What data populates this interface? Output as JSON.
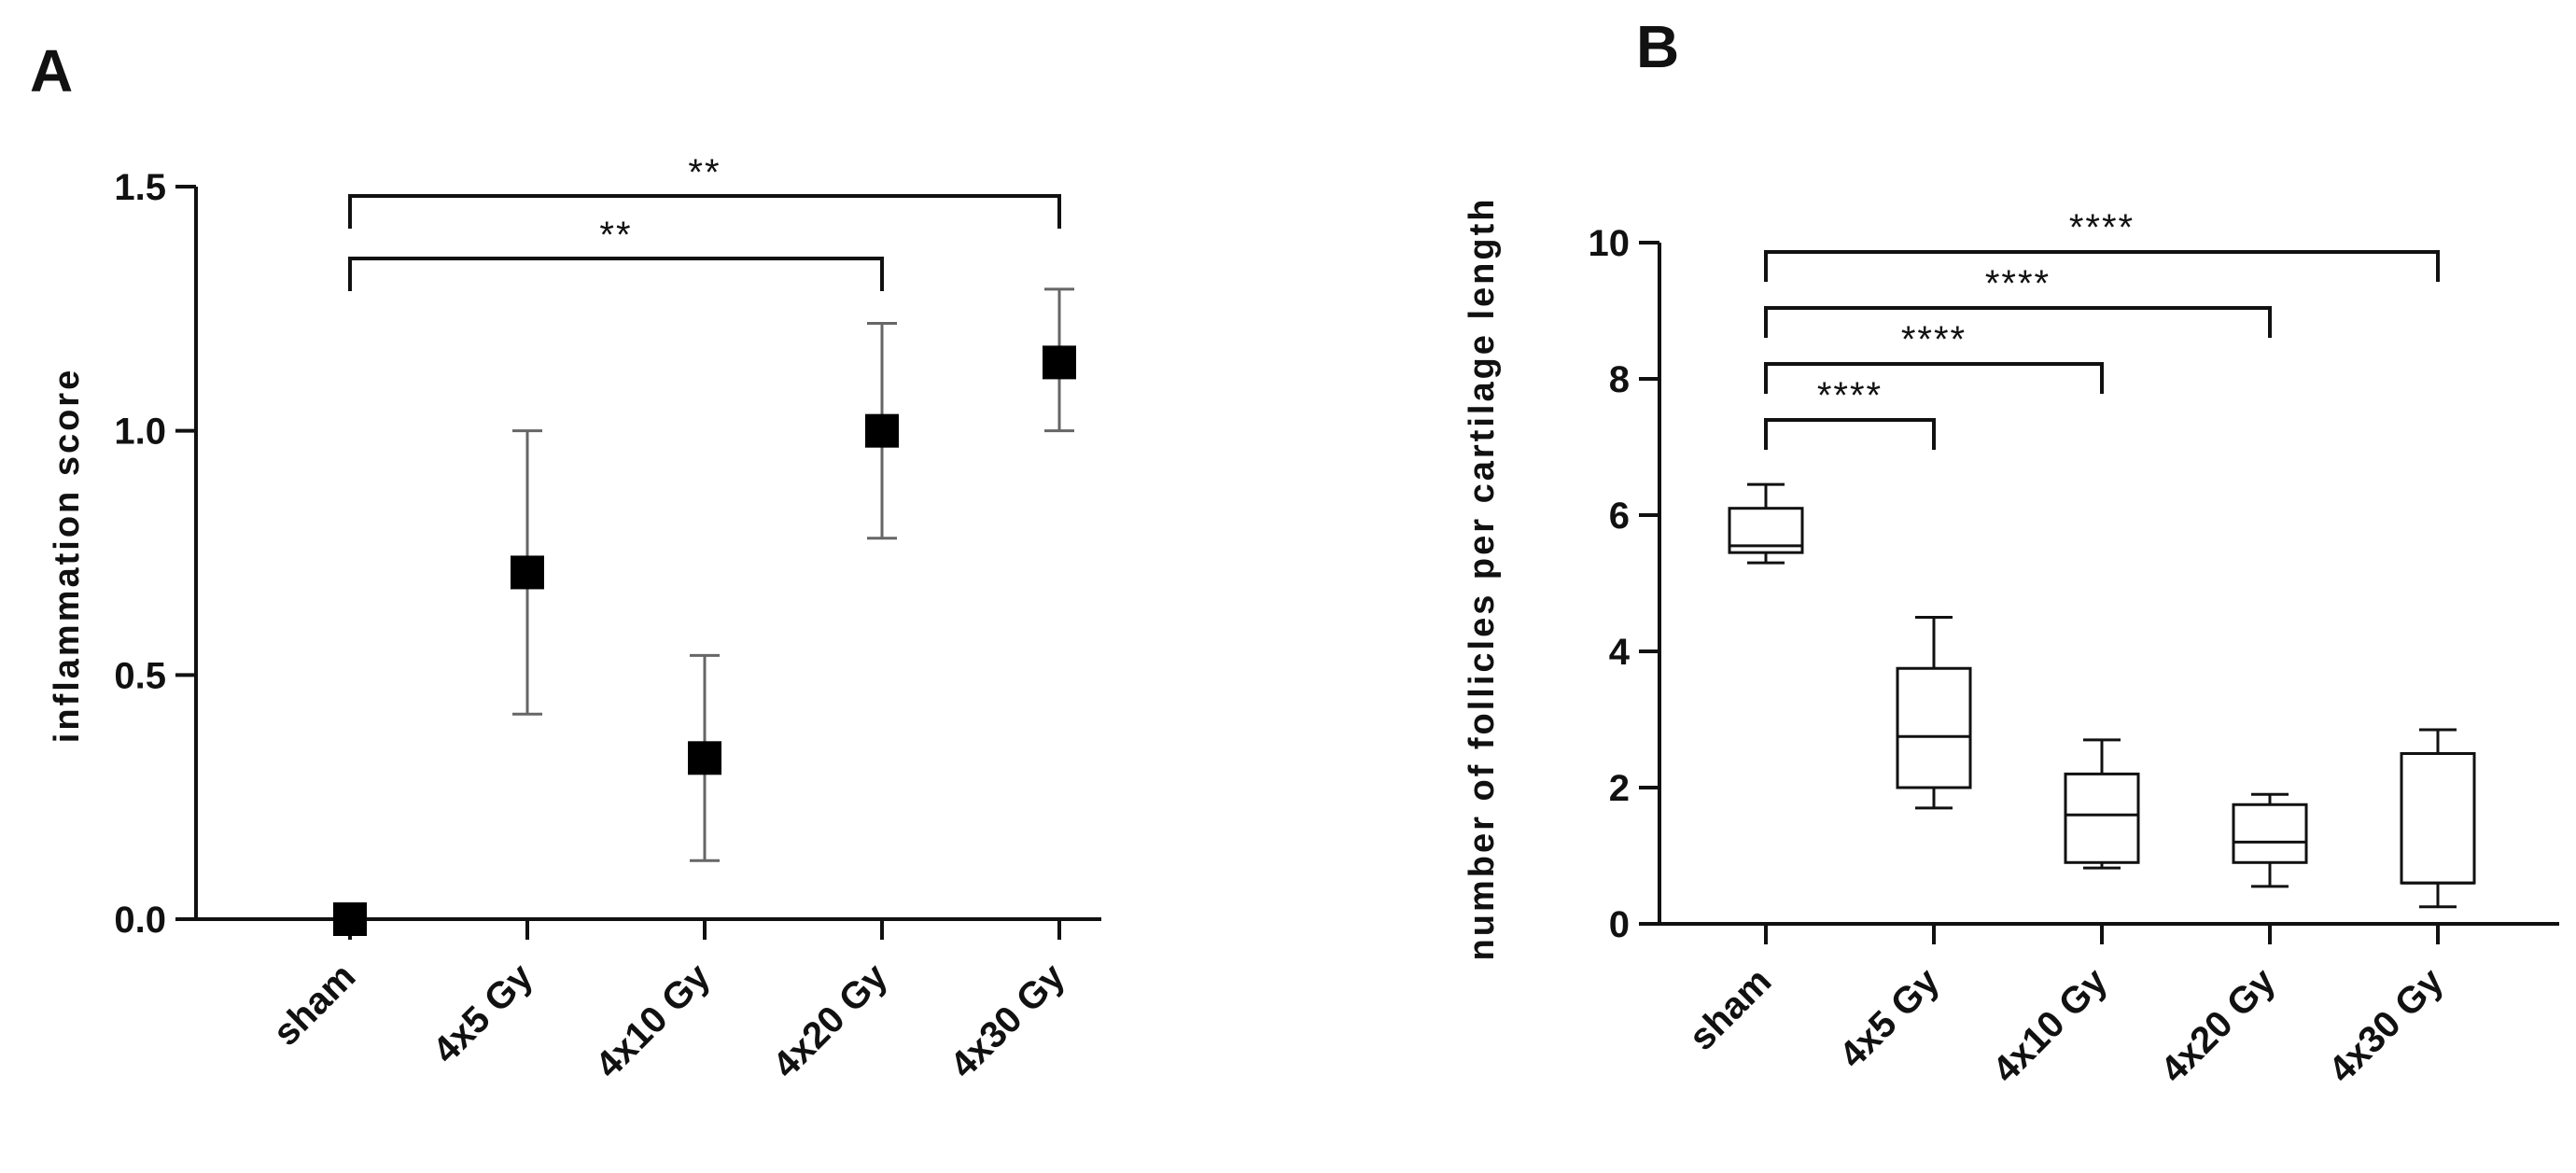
{
  "chart_data": [
    {
      "panel": "A",
      "type": "scatter",
      "ylabel": "inflammation score",
      "xlabel": "",
      "categories": [
        "sham",
        "4x5 Gy",
        "4x10 Gy",
        "4x20 Gy",
        "4x30 Gy"
      ],
      "yticks": [
        "0.0",
        "0.5",
        "1.0",
        "1.5"
      ],
      "ylim": [
        0,
        1.5
      ],
      "points": [
        {
          "category": "sham",
          "mean": 0.0,
          "err_low": 0.0,
          "err_high": 0.0
        },
        {
          "category": "4x5 Gy",
          "mean": 0.71,
          "err_low": 0.42,
          "err_high": 1.0
        },
        {
          "category": "4x10 Gy",
          "mean": 0.33,
          "err_low": 0.12,
          "err_high": 0.54
        },
        {
          "category": "4x20 Gy",
          "mean": 1.0,
          "err_low": 0.78,
          "err_high": 1.22
        },
        {
          "category": "4x30 Gy",
          "mean": 1.14,
          "err_low": 1.0,
          "err_high": 1.29
        }
      ],
      "marker": "square",
      "grid": false,
      "significance": [
        {
          "from": "sham",
          "to": "4x20 Gy",
          "label": "**"
        },
        {
          "from": "sham",
          "to": "4x30 Gy",
          "label": "**"
        }
      ]
    },
    {
      "panel": "B",
      "type": "box",
      "ylabel": "number of follicles per cartilage length",
      "xlabel": "",
      "categories": [
        "sham",
        "4x5 Gy",
        "4x10 Gy",
        "4x20 Gy",
        "4x30 Gy"
      ],
      "yticks": [
        "0",
        "2",
        "4",
        "6",
        "8",
        "10"
      ],
      "ylim": [
        0,
        10
      ],
      "boxes": [
        {
          "category": "sham",
          "min": 5.3,
          "q1": 5.45,
          "median": 5.55,
          "q3": 6.1,
          "max": 6.45
        },
        {
          "category": "4x5 Gy",
          "min": 1.7,
          "q1": 2.0,
          "median": 2.75,
          "q3": 3.75,
          "max": 4.5
        },
        {
          "category": "4x10 Gy",
          "min": 0.82,
          "q1": 0.9,
          "median": 1.6,
          "q3": 2.2,
          "max": 2.7
        },
        {
          "category": "4x20 Gy",
          "min": 0.55,
          "q1": 0.9,
          "median": 1.2,
          "q3": 1.75,
          "max": 1.9
        },
        {
          "category": "4x30 Gy",
          "min": 0.25,
          "q1": 0.6,
          "median": 0.6,
          "q3": 2.5,
          "max": 2.85
        }
      ],
      "grid": false,
      "significance": [
        {
          "from": "sham",
          "to": "4x5 Gy",
          "label": "****"
        },
        {
          "from": "sham",
          "to": "4x10 Gy",
          "label": "****"
        },
        {
          "from": "sham",
          "to": "4x20 Gy",
          "label": "****"
        },
        {
          "from": "sham",
          "to": "4x30 Gy",
          "label": "****"
        }
      ]
    }
  ]
}
